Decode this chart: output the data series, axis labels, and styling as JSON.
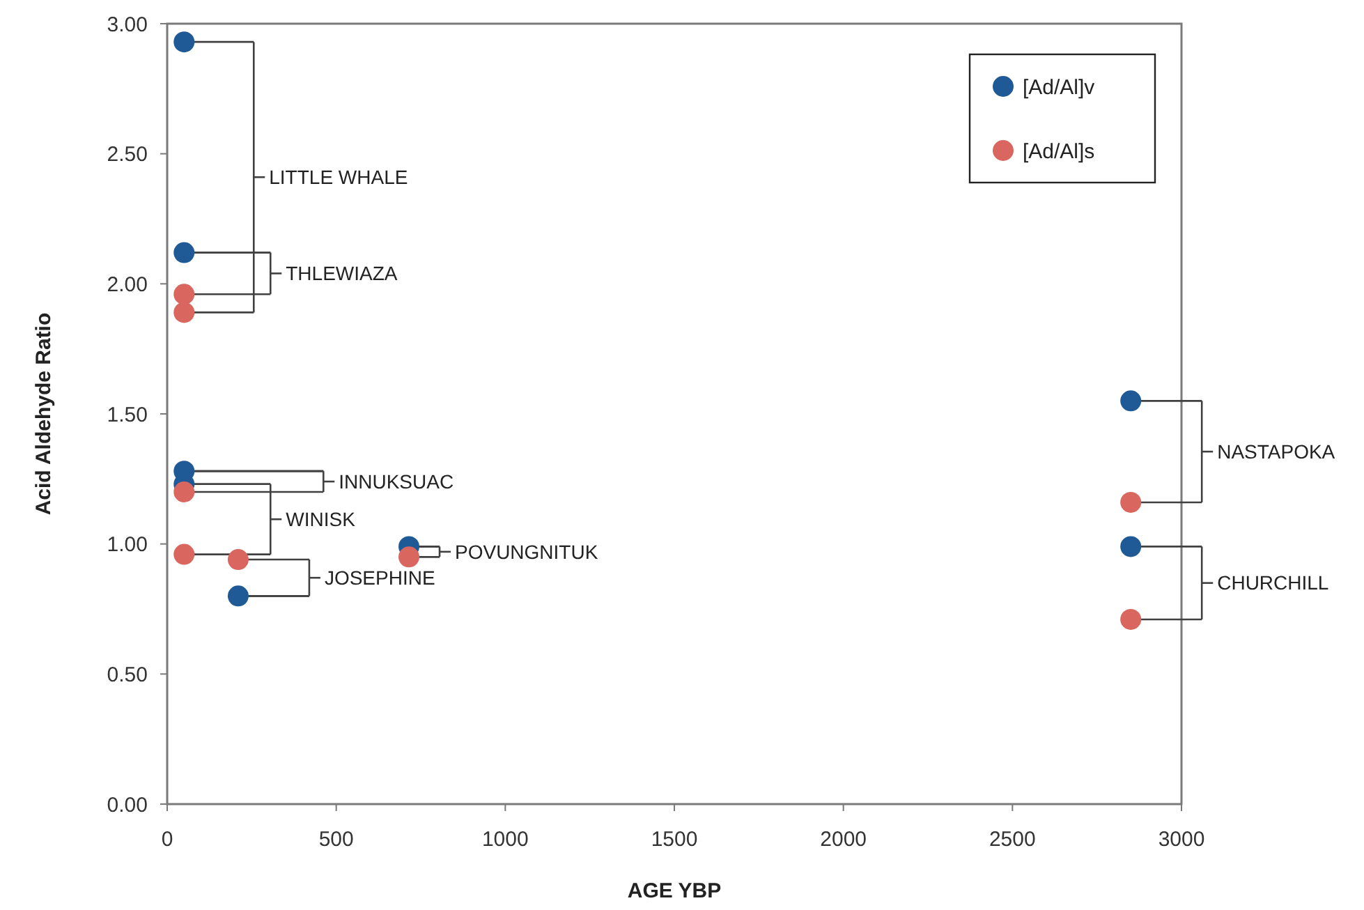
{
  "chart_data": {
    "type": "scatter",
    "xlabel": "AGE YBP",
    "ylabel": "Acid Aldehyde Ratio",
    "xlim": [
      0,
      3000
    ],
    "xticks": [
      0,
      500,
      1000,
      1500,
      2000,
      2500,
      3000
    ],
    "ylim": [
      0,
      3
    ],
    "yticks": [
      {
        "value": 0,
        "label": "0.00"
      },
      {
        "value": 0.5,
        "label": "0.50"
      },
      {
        "value": 1,
        "label": "1.00"
      },
      {
        "value": 1.5,
        "label": "1.50"
      },
      {
        "value": 2,
        "label": "2.00"
      },
      {
        "value": 2.5,
        "label": "2.50"
      },
      {
        "value": 3,
        "label": "3.00"
      }
    ],
    "marker": "circle",
    "legend": "top right",
    "grid": false,
    "series": [
      {
        "name": "[Ad/Al]v",
        "color": "#1f5a96",
        "x": [
          50,
          50,
          50,
          50,
          210,
          715,
          2850,
          2850
        ],
        "values": [
          2.93,
          2.12,
          1.28,
          1.23,
          0.8,
          0.99,
          1.55,
          0.99
        ]
      },
      {
        "name": "[Ad/Al]s",
        "color": "#d9675f",
        "x": [
          50,
          50,
          50,
          50,
          210,
          715,
          2850,
          2850
        ],
        "values": [
          1.89,
          1.96,
          1.2,
          0.96,
          0.94,
          0.95,
          1.16,
          0.71
        ]
      }
    ],
    "annotations": [
      "LITTLE WHALE",
      {
        "text": "THLEWIAZA",
        "x": 50,
        "y": 2.12
      },
      {
        "text": "INNUKSUAC",
        "x": 50,
        "y": 1.28
      },
      {
        "text": "WINISK",
        "x": 50,
        "y": 1.23
      },
      {
        "text": "JOSEPHINE",
        "x": 210,
        "y": 0.8
      },
      {
        "text": "POVUNGNITUK",
        "x": 715,
        "y": 0.99
      },
      "NASTAPOKA",
      "CHURCHILL"
    ]
  }
}
